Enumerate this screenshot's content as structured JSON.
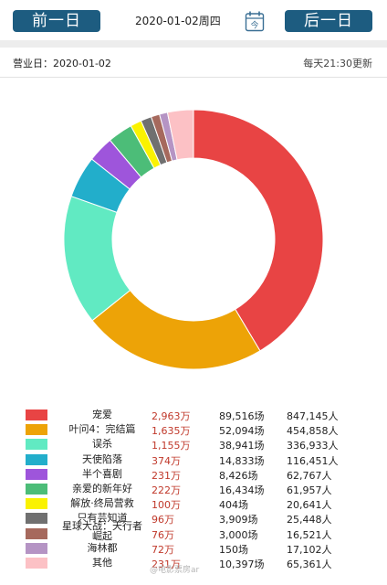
{
  "header": {
    "prev_label": "前一日",
    "next_label": "后一日",
    "date_weekday": "2020-01-02周四",
    "calendar_char": "今"
  },
  "info": {
    "business_date": "营业日：2020-01-02",
    "update_note": "每天21:30更新"
  },
  "chart_data": {
    "type": "pie",
    "variant": "donut",
    "start": "top, clockwise",
    "labels": [
      "宠爱",
      "叶问4：完结篇",
      "误杀",
      "天使陷落",
      "半个喜剧",
      "亲爱的新年好",
      "解放·终局营救",
      "只有芸知道",
      "星球大战：天行者崛起",
      "海林都",
      "其他"
    ],
    "values": [
      2963,
      1635,
      1155,
      374,
      231,
      222,
      100,
      96,
      76,
      72,
      231
    ],
    "value_unit": "万",
    "colors": [
      "#e84444",
      "#eda307",
      "#61eac2",
      "#22aecb",
      "#9e55db",
      "#4cbd78",
      "#faf201",
      "#707070",
      "#a6695d",
      "#b594c4",
      "#fcc1c5"
    ]
  },
  "legend": [
    {
      "name": "宠爱",
      "box": "2,963万",
      "shows": "89,516场",
      "audience": "847,145人"
    },
    {
      "name": "叶问4：完结篇",
      "box": "1,635万",
      "shows": "52,094场",
      "audience": "454,858人"
    },
    {
      "name": "误杀",
      "box": "1,155万",
      "shows": "38,941场",
      "audience": "336,933人"
    },
    {
      "name": "天使陷落",
      "box": "374万",
      "shows": "14,833场",
      "audience": "116,451人"
    },
    {
      "name": "半个喜剧",
      "box": "231万",
      "shows": "8,426场",
      "audience": "62,767人"
    },
    {
      "name": "亲爱的新年好",
      "box": "222万",
      "shows": "16,434场",
      "audience": "61,957人"
    },
    {
      "name": "解放·终局营救",
      "box": "100万",
      "shows": "404场",
      "audience": "20,641人"
    },
    {
      "name": "只有芸知道",
      "box": "96万",
      "shows": "3,909场",
      "audience": "25,448人"
    },
    {
      "name": "星球大战：天行者崛起",
      "box": "76万",
      "shows": "3,000场",
      "audience": "16,521人"
    },
    {
      "name": "海林都",
      "box": "72万",
      "shows": "150场",
      "audience": "17,102人"
    },
    {
      "name": "其他",
      "box": "231万",
      "shows": "10,397场",
      "audience": "65,361人"
    }
  ],
  "watermark": "@电影票房ar"
}
